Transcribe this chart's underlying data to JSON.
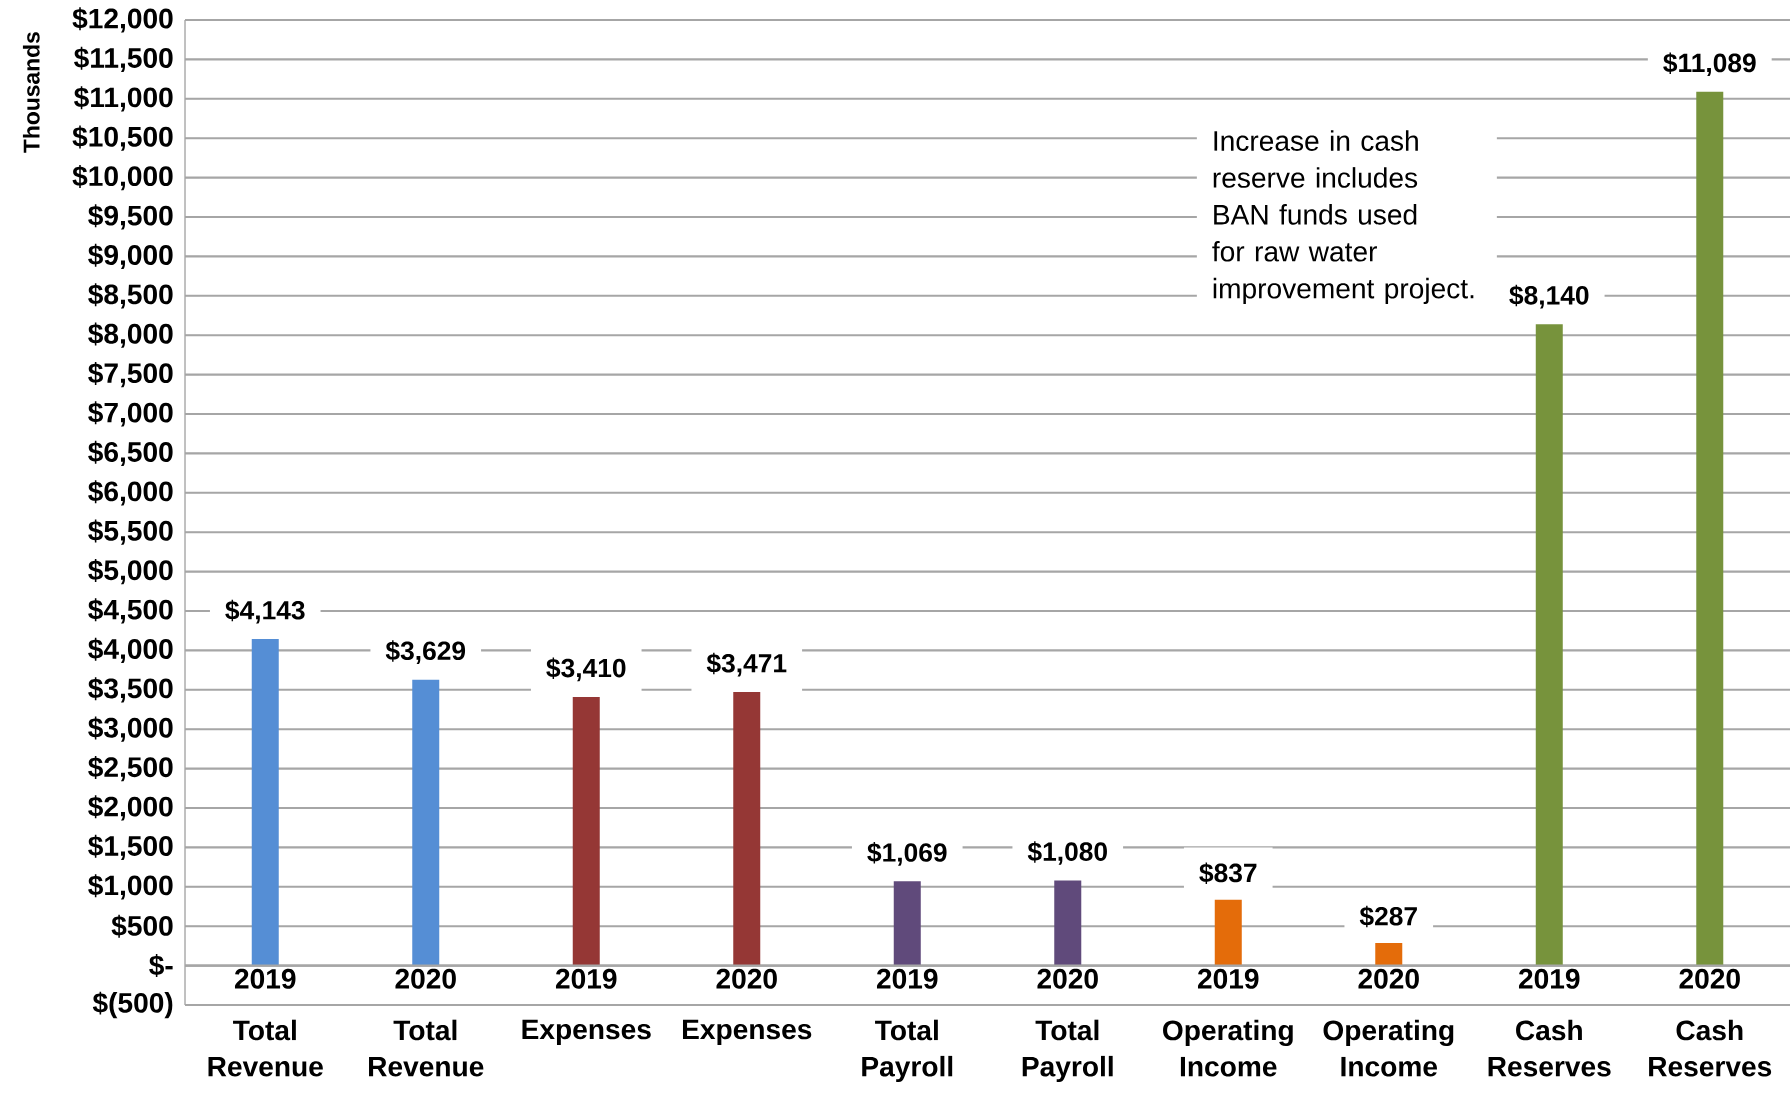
{
  "chart_data": {
    "type": "bar",
    "ylabel": "Thousands",
    "categories": [
      "2019",
      "2020",
      "2019",
      "2020",
      "2019",
      "2020",
      "2019",
      "2020",
      "2019",
      "2020"
    ],
    "values": [
      4143,
      3629,
      3410,
      3471,
      1069,
      1080,
      837,
      287,
      8140,
      11089
    ],
    "value_labels": [
      "$4,143",
      "$3,629",
      "$3,410",
      "$3,471",
      "$1,069",
      "$1,080",
      "$837",
      "$287",
      "$8,140",
      "$11,089"
    ],
    "colors": [
      "#558ed5",
      "#558ed5",
      "#953735",
      "#953735",
      "#604a7b",
      "#604a7b",
      "#e46c0a",
      "#e46c0a",
      "#77933c",
      "#77933c"
    ],
    "annotations": [
      "Total Revenue",
      "Total Revenue",
      "Expenses",
      "Expenses",
      "Total Payroll",
      "Total Payroll",
      "Operating Income",
      "Operating Income",
      "Cash Reserves",
      "Cash Reserves",
      "Increase in cash reserve includes BAN funds used for raw water improvement project."
    ],
    "ylim": [
      -500,
      12000
    ],
    "yticks": [
      {
        "value": -500,
        "label": "$(500)"
      },
      {
        "value": 0,
        "label": "$-"
      },
      {
        "value": 500,
        "label": "$500"
      },
      {
        "value": 1000,
        "label": "$1,000"
      },
      {
        "value": 1500,
        "label": "$1,500"
      },
      {
        "value": 2000,
        "label": "$2,000"
      },
      {
        "value": 2500,
        "label": "$2,500"
      },
      {
        "value": 3000,
        "label": "$3,000"
      },
      {
        "value": 3500,
        "label": "$3,500"
      },
      {
        "value": 4000,
        "label": "$4,000"
      },
      {
        "value": 4500,
        "label": "$4,500"
      },
      {
        "value": 5000,
        "label": "$5,000"
      },
      {
        "value": 5500,
        "label": "$5,500"
      },
      {
        "value": 6000,
        "label": "$6,000"
      },
      {
        "value": 6500,
        "label": "$6,500"
      },
      {
        "value": 7000,
        "label": "$7,000"
      },
      {
        "value": 7500,
        "label": "$7,500"
      },
      {
        "value": 8000,
        "label": "$8,000"
      },
      {
        "value": 8500,
        "label": "$8,500"
      },
      {
        "value": 9000,
        "label": "$9,000"
      },
      {
        "value": 9500,
        "label": "$9,500"
      },
      {
        "value": 10000,
        "label": "$10,000"
      },
      {
        "value": 10500,
        "label": "$10,500"
      },
      {
        "value": 11000,
        "label": "$11,000"
      },
      {
        "value": 11500,
        "label": "$11,500"
      },
      {
        "value": 12000,
        "label": "$12,000"
      }
    ],
    "grid": "y"
  }
}
